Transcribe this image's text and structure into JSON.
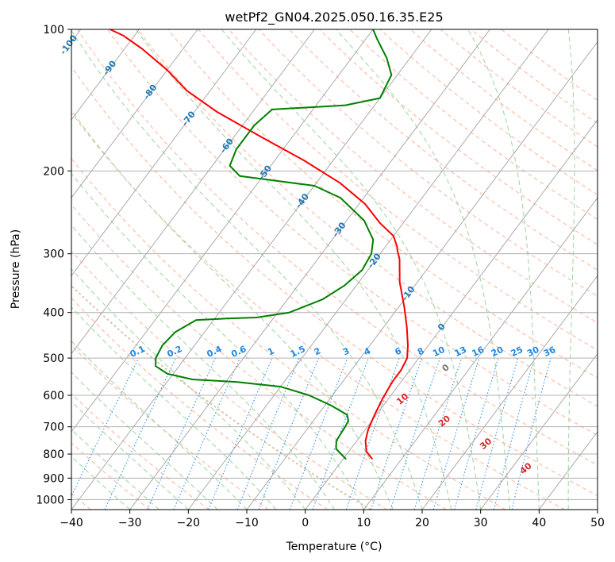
{
  "chart_data": {
    "type": "line",
    "title": "wetPf2_GN04.2025.050.16.35.E25",
    "xlabel": "Temperature (°C)",
    "ylabel": "Pressure (hPa)",
    "xlim": [
      -40,
      50
    ],
    "ylim": [
      1050,
      100
    ],
    "y_scale": "log",
    "grid": true,
    "x_ticks": [
      "−40",
      "−30",
      "−20",
      "−10",
      "0",
      "10",
      "20",
      "30",
      "40",
      "50"
    ],
    "x_tick_values": [
      -40,
      -30,
      -20,
      -10,
      0,
      10,
      20,
      30,
      40,
      50
    ],
    "y_ticks": [
      "100",
      "200",
      "300",
      "400",
      "500",
      "600",
      "700",
      "800",
      "900",
      "1000"
    ],
    "y_tick_values": [
      100,
      200,
      300,
      400,
      500,
      600,
      700,
      800,
      900,
      1000
    ],
    "colors": {
      "temperature": "#ff0000",
      "dewpoint": "#008000",
      "isotherms": "#aaaaaa",
      "dry_adiabats": "#ffb199",
      "moist_adiabats": "#9fd39f",
      "mixing_ratio": "#1e88e5",
      "isotherm_labels": "#1f77b4",
      "moist_labels": "#d62728",
      "lcl_curve": "#d8c3a5"
    },
    "series": [
      {
        "key": "temperature",
        "points": [
          [
            5,
            820
          ],
          [
            3,
            790
          ],
          [
            1.5,
            750
          ],
          [
            0.5,
            710
          ],
          [
            -0.3,
            660
          ],
          [
            -1,
            610
          ],
          [
            -1.5,
            560
          ],
          [
            -1.5,
            530
          ],
          [
            -2,
            500
          ],
          [
            -3.5,
            470
          ],
          [
            -6,
            430
          ],
          [
            -9,
            390
          ],
          [
            -13,
            345
          ],
          [
            -16,
            308
          ],
          [
            -17.5,
            295
          ],
          [
            -18,
            290
          ],
          [
            -20,
            275
          ],
          [
            -24,
            258
          ],
          [
            -29,
            235
          ],
          [
            -36,
            212
          ],
          [
            -45,
            190
          ],
          [
            -55,
            170
          ],
          [
            -66,
            150
          ],
          [
            -74,
            135
          ],
          [
            -80,
            122
          ],
          [
            -87,
            110
          ],
          [
            -92,
            103
          ],
          [
            -95,
            100
          ]
        ]
      },
      {
        "key": "dewpoint",
        "points": [
          [
            0.5,
            820
          ],
          [
            -1,
            800
          ],
          [
            -2.5,
            780
          ],
          [
            -3.5,
            750
          ],
          [
            -3.8,
            700
          ],
          [
            -4,
            680
          ],
          [
            -5,
            660
          ],
          [
            -9,
            630
          ],
          [
            -14,
            600
          ],
          [
            -20,
            575
          ],
          [
            -28,
            562
          ],
          [
            -36,
            555
          ],
          [
            -41,
            540
          ],
          [
            -44,
            520
          ],
          [
            -45,
            500
          ],
          [
            -45.5,
            470
          ],
          [
            -45,
            440
          ],
          [
            -43,
            415
          ],
          [
            -38,
            412
          ],
          [
            -33,
            410
          ],
          [
            -28,
            400
          ],
          [
            -24,
            375
          ],
          [
            -22,
            350
          ],
          [
            -21,
            325
          ],
          [
            -21.5,
            300
          ],
          [
            -23,
            280
          ],
          [
            -27,
            255
          ],
          [
            -34,
            228
          ],
          [
            -40,
            215
          ],
          [
            -47,
            210
          ],
          [
            -54,
            205
          ],
          [
            -57,
            195
          ],
          [
            -58,
            180
          ],
          [
            -58,
            160
          ],
          [
            -57,
            148
          ],
          [
            -45,
            145
          ],
          [
            -40,
            140
          ],
          [
            -41,
            125
          ],
          [
            -44,
            115
          ],
          [
            -48,
            105
          ],
          [
            -50,
            100
          ]
        ]
      }
    ],
    "isotherm_labels": [
      "-100",
      "-90",
      "-80",
      "-70",
      "-60",
      "-50",
      "-40",
      "-30",
      "-20",
      "-10",
      "0"
    ],
    "isotherm_label_values": [
      -100,
      -90,
      -80,
      -70,
      -60,
      -50,
      -40,
      -30,
      -20,
      -10,
      0
    ],
    "mixing_ratio_labels": [
      "0.1",
      "0.2",
      "0.4",
      "0.6",
      "1",
      "1.5",
      "2",
      "3",
      "4",
      "6",
      "8",
      "10",
      "13",
      "16",
      "20",
      "25",
      "30",
      "36"
    ],
    "mixing_ratio_values": [
      0.1,
      0.2,
      0.4,
      0.6,
      1,
      1.5,
      2,
      3,
      4,
      6,
      8,
      10,
      13,
      16,
      20,
      25,
      30,
      36
    ],
    "moist_adiabat_labels": [
      "10",
      "20",
      "30",
      "40"
    ],
    "moist_adiabat_values": [
      10,
      20,
      30,
      40
    ]
  }
}
